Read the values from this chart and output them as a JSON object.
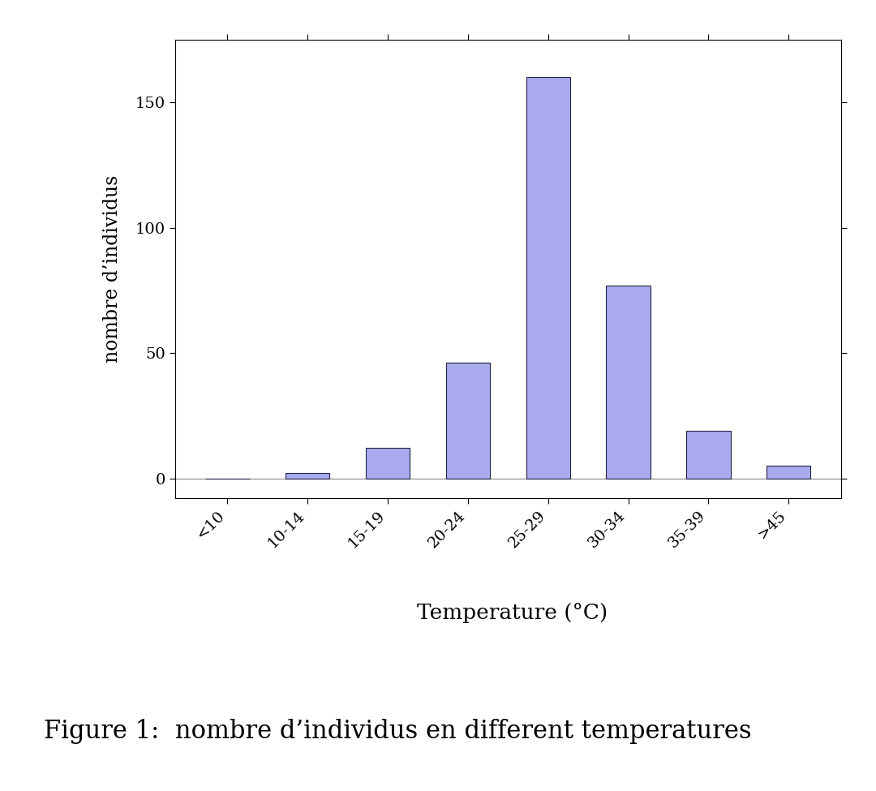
{
  "categories": [
    "<10",
    "10-14",
    "15-19",
    "20-24",
    "25-29",
    "30-34",
    "35-39",
    ">45"
  ],
  "values": [
    0,
    2,
    12,
    46,
    160,
    77,
    19,
    5
  ],
  "bar_color": "#aaaaee",
  "bar_edgecolor": "#222244",
  "background_color": "#ffffff",
  "ylabel": "nombre d’individus",
  "xlabel": "Temperature (°C)",
  "caption": "Figure 1:  nombre d’individus en different temperatures",
  "ylim": [
    -8,
    175
  ],
  "yticks": [
    0,
    50,
    100,
    150
  ],
  "bar_width": 0.55,
  "label_fontsize": 17,
  "tick_fontsize": 14,
  "caption_fontsize": 22,
  "ylabel_fontsize": 17
}
